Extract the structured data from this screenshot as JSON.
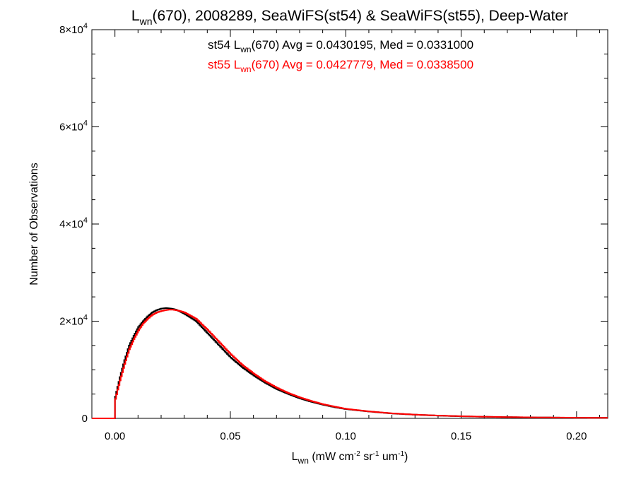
{
  "chart_data": {
    "type": "line",
    "title": {
      "main": "L",
      "sub": "wn",
      "rest": "(670), 2008289, SeaWiFS(st54) & SeaWiFS(st55), Deep-Water"
    },
    "xlabel": {
      "main": "L",
      "sub": "wn",
      "rest": " (mW cm",
      "sup1": "-2",
      "mid1": " sr",
      "sup2": "-1",
      "mid2": " um",
      "sup3": "-1",
      "end": ")"
    },
    "ylabel": "Number of Observations",
    "xlim": [
      -0.01,
      0.2135
    ],
    "ylim": [
      0,
      80000
    ],
    "grid": false,
    "x_ticks": [
      {
        "value": 0.0,
        "label": "0.00"
      },
      {
        "value": 0.05,
        "label": "0.05"
      },
      {
        "value": 0.1,
        "label": "0.10"
      },
      {
        "value": 0.15,
        "label": "0.15"
      },
      {
        "value": 0.2,
        "label": "0.20"
      }
    ],
    "y_ticks": [
      {
        "value": 0,
        "label": "0",
        "exp": ""
      },
      {
        "value": 20000,
        "label": "2×10",
        "exp": "4"
      },
      {
        "value": 40000,
        "label": "4×10",
        "exp": "4"
      },
      {
        "value": 60000,
        "label": "6×10",
        "exp": "4"
      },
      {
        "value": 80000,
        "label": "8×10",
        "exp": "4"
      }
    ],
    "annotations": [
      {
        "pre": "st54 L",
        "sub": "wn",
        "post": "(670) Avg = 0.0430195, Med = 0.0331000",
        "color": "#000000"
      },
      {
        "pre": "st55 L",
        "sub": "wn",
        "post": "(670) Avg = 0.0427779, Med = 0.0338500",
        "color": "#ff0000"
      }
    ],
    "series": [
      {
        "color": "#000000",
        "x": [
          0.0,
          0.002,
          0.004,
          0.006,
          0.008,
          0.01,
          0.012,
          0.014,
          0.016,
          0.018,
          0.02,
          0.022,
          0.024,
          0.026,
          0.028,
          0.03,
          0.035,
          0.04,
          0.045,
          0.05,
          0.055,
          0.06,
          0.065,
          0.07,
          0.075,
          0.08,
          0.085,
          0.09,
          0.095,
          0.1,
          0.11,
          0.12,
          0.13,
          0.14,
          0.15,
          0.16,
          0.17,
          0.18,
          0.19,
          0.2,
          0.21,
          0.2135
        ],
        "y": [
          4500,
          8500,
          12000,
          15000,
          17000,
          18800,
          20000,
          21000,
          21800,
          22300,
          22600,
          22700,
          22600,
          22400,
          22000,
          21500,
          20000,
          17500,
          15000,
          12500,
          10500,
          8800,
          7300,
          6000,
          5000,
          4100,
          3400,
          2800,
          2300,
          1900,
          1400,
          1000,
          750,
          560,
          420,
          320,
          250,
          200,
          160,
          130,
          110,
          100
        ]
      },
      {
        "color": "#ff0000",
        "x": [
          0.0,
          0.002,
          0.004,
          0.006,
          0.008,
          0.01,
          0.012,
          0.014,
          0.016,
          0.018,
          0.02,
          0.022,
          0.024,
          0.026,
          0.028,
          0.03,
          0.035,
          0.04,
          0.045,
          0.05,
          0.055,
          0.06,
          0.065,
          0.07,
          0.075,
          0.08,
          0.085,
          0.09,
          0.095,
          0.1,
          0.11,
          0.12,
          0.13,
          0.14,
          0.15,
          0.16,
          0.17,
          0.18,
          0.19,
          0.2,
          0.21,
          0.2135
        ],
        "y": [
          4000,
          7800,
          11200,
          14200,
          16300,
          18100,
          19500,
          20500,
          21300,
          21800,
          22100,
          22300,
          22400,
          22300,
          22100,
          21800,
          20500,
          18200,
          15700,
          13200,
          11000,
          9200,
          7600,
          6300,
          5200,
          4300,
          3550,
          2900,
          2400,
          1950,
          1420,
          1020,
          760,
          570,
          430,
          330,
          260,
          205,
          165,
          135,
          112,
          100
        ]
      }
    ]
  }
}
